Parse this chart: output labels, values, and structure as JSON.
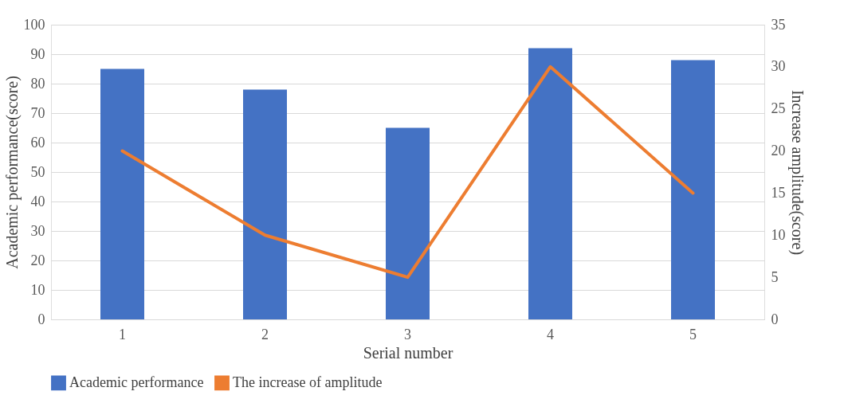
{
  "chart_data": {
    "type": "bar",
    "xlabel": "Serial number",
    "ylabel": "Academic performance(score)",
    "y2label": "Increase amplitude(score)",
    "categories": [
      "1",
      "2",
      "3",
      "4",
      "5"
    ],
    "series": [
      {
        "name": "Academic performance",
        "color": "#4472c4",
        "values": [
          85,
          78,
          65,
          92,
          88
        ]
      },
      {
        "name": "The increase of amplitude",
        "color": "#ed7d31",
        "type": "line",
        "axis": "y2",
        "values": [
          20,
          10,
          5,
          30,
          15
        ]
      }
    ],
    "ylim": [
      0,
      100
    ],
    "yticks": [
      0,
      10,
      20,
      30,
      40,
      50,
      60,
      70,
      80,
      90,
      100
    ],
    "y2lim": [
      0,
      35
    ],
    "y2ticks": [
      0,
      5,
      10,
      15,
      20,
      25,
      30,
      35
    ],
    "grid": "y",
    "legend": "bottom",
    "line_style": "solid",
    "marker": "none"
  }
}
